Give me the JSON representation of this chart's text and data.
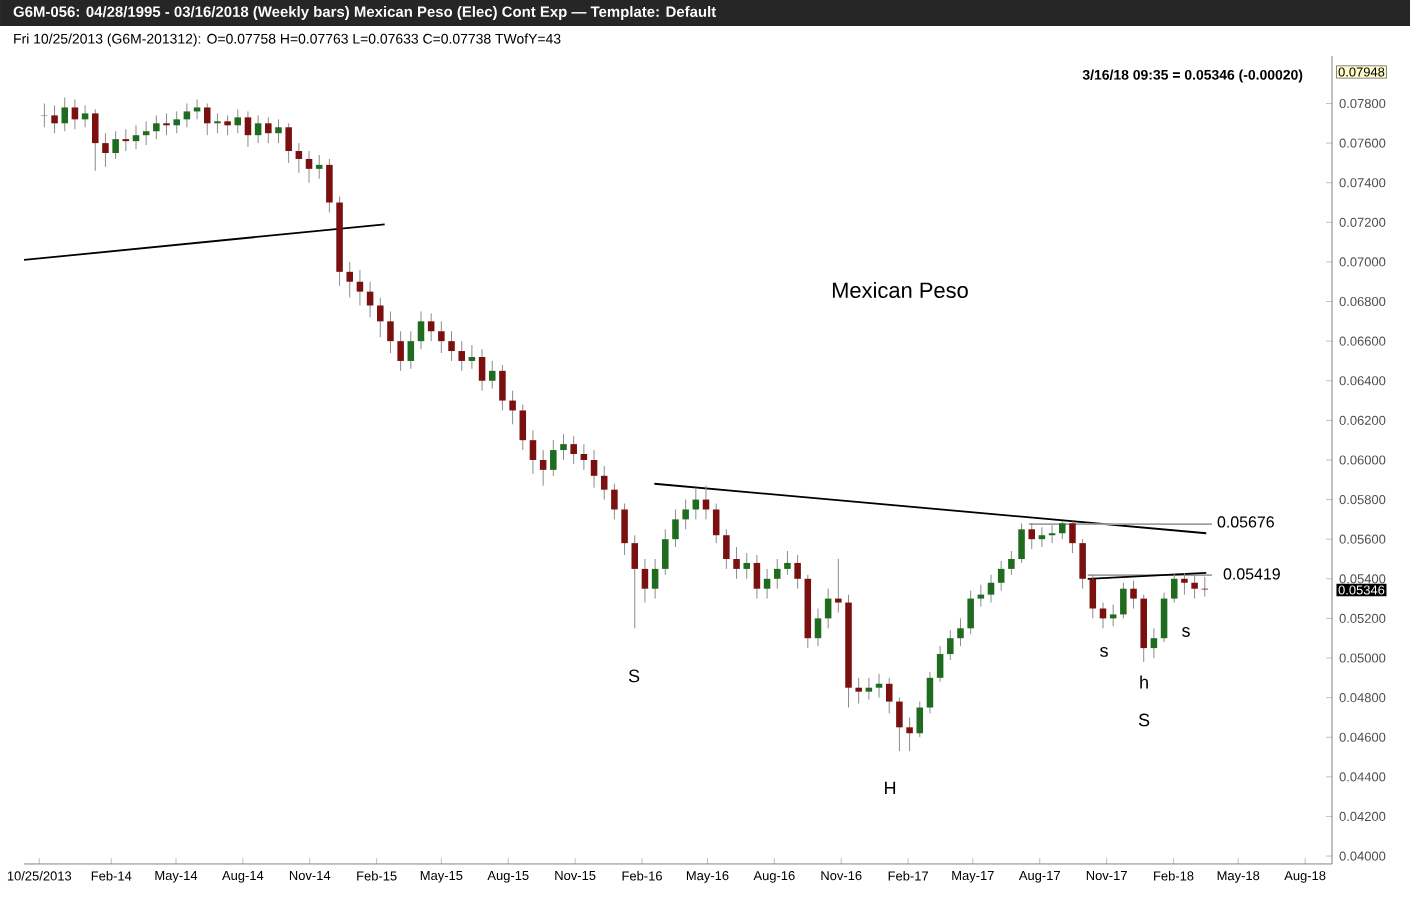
{
  "chart_data": {
    "type": "candlestick",
    "title": "G6M-056: 04/28/1995 - 03/16/2018 (Weekly bars) Mexican Peso (Elec) Cont Exp — Template: Default",
    "subtitle": "Fri 10/25/2013 (G6M-201312): O=0.07758 H=0.07763 L=0.07633 C=0.07738 TWofY=43",
    "x": [
      "2013-11-01",
      "2013-11-15",
      "2013-11-29",
      "2013-12-13",
      "2013-12-27",
      "2014-01-10",
      "2014-01-24",
      "2014-02-07",
      "2014-02-21",
      "2014-03-07",
      "2014-03-21",
      "2014-04-04",
      "2014-04-18",
      "2014-05-02",
      "2014-05-16",
      "2014-05-30",
      "2014-06-13",
      "2014-06-27",
      "2014-07-11",
      "2014-07-25",
      "2014-08-08",
      "2014-08-22",
      "2014-09-05",
      "2014-09-19",
      "2014-10-03",
      "2014-10-17",
      "2014-10-31",
      "2014-11-14",
      "2014-11-28",
      "2014-12-12",
      "2014-12-26",
      "2015-01-09",
      "2015-01-23",
      "2015-02-06",
      "2015-02-20",
      "2015-03-06",
      "2015-03-20",
      "2015-04-03",
      "2015-04-17",
      "2015-05-01",
      "2015-05-15",
      "2015-05-29",
      "2015-06-12",
      "2015-06-26",
      "2015-07-10",
      "2015-07-24",
      "2015-08-07",
      "2015-08-21",
      "2015-09-04",
      "2015-09-18",
      "2015-10-02",
      "2015-10-16",
      "2015-10-30",
      "2015-11-13",
      "2015-11-27",
      "2015-12-11",
      "2015-12-25",
      "2016-01-08",
      "2016-01-22",
      "2016-02-05",
      "2016-02-19",
      "2016-03-04",
      "2016-03-18",
      "2016-04-01",
      "2016-04-15",
      "2016-04-29",
      "2016-05-13",
      "2016-05-27",
      "2016-06-10",
      "2016-06-24",
      "2016-07-08",
      "2016-07-22",
      "2016-08-05",
      "2016-08-19",
      "2016-09-02",
      "2016-09-16",
      "2016-09-30",
      "2016-10-14",
      "2016-10-28",
      "2016-11-11",
      "2016-11-25",
      "2016-12-09",
      "2016-12-23",
      "2017-01-06",
      "2017-01-20",
      "2017-02-03",
      "2017-02-17",
      "2017-03-03",
      "2017-03-17",
      "2017-03-31",
      "2017-04-14",
      "2017-04-28",
      "2017-05-12",
      "2017-05-26",
      "2017-06-09",
      "2017-06-23",
      "2017-07-07",
      "2017-07-21",
      "2017-08-04",
      "2017-08-18",
      "2017-09-01",
      "2017-09-15",
      "2017-09-29",
      "2017-10-13",
      "2017-10-27",
      "2017-11-10",
      "2017-11-24",
      "2017-12-08",
      "2017-12-22",
      "2018-01-05",
      "2018-01-19",
      "2018-02-02",
      "2018-02-16",
      "2018-03-02",
      "2018-03-16"
    ],
    "ohlc": [
      [
        0.07738,
        0.078,
        0.0768,
        0.0774
      ],
      [
        0.0774,
        0.0779,
        0.0765,
        0.077
      ],
      [
        0.077,
        0.0783,
        0.0766,
        0.0778
      ],
      [
        0.0778,
        0.0782,
        0.0767,
        0.0772
      ],
      [
        0.0772,
        0.0779,
        0.0768,
        0.0775
      ],
      [
        0.0775,
        0.0777,
        0.0746,
        0.076
      ],
      [
        0.076,
        0.0765,
        0.0748,
        0.0755
      ],
      [
        0.0755,
        0.0766,
        0.0752,
        0.0762
      ],
      [
        0.0762,
        0.0767,
        0.0756,
        0.0761
      ],
      [
        0.0761,
        0.0769,
        0.0757,
        0.0764
      ],
      [
        0.0764,
        0.0771,
        0.0759,
        0.0766
      ],
      [
        0.0766,
        0.0774,
        0.0762,
        0.077
      ],
      [
        0.077,
        0.0775,
        0.0764,
        0.0769
      ],
      [
        0.0769,
        0.0776,
        0.0765,
        0.0772
      ],
      [
        0.0772,
        0.078,
        0.0768,
        0.0776
      ],
      [
        0.0776,
        0.0782,
        0.0772,
        0.0778
      ],
      [
        0.0778,
        0.078,
        0.0764,
        0.077
      ],
      [
        0.077,
        0.0775,
        0.0765,
        0.0771
      ],
      [
        0.0771,
        0.0774,
        0.0764,
        0.0769
      ],
      [
        0.0769,
        0.0777,
        0.0765,
        0.0773
      ],
      [
        0.0773,
        0.0776,
        0.0758,
        0.0764
      ],
      [
        0.0764,
        0.0774,
        0.076,
        0.077
      ],
      [
        0.077,
        0.0773,
        0.076,
        0.0765
      ],
      [
        0.0765,
        0.0772,
        0.076,
        0.0768
      ],
      [
        0.0768,
        0.077,
        0.075,
        0.0756
      ],
      [
        0.0756,
        0.076,
        0.0745,
        0.0752
      ],
      [
        0.0752,
        0.0756,
        0.074,
        0.0747
      ],
      [
        0.0747,
        0.0754,
        0.0742,
        0.0749
      ],
      [
        0.0749,
        0.0752,
        0.0725,
        0.073
      ],
      [
        0.073,
        0.0733,
        0.0688,
        0.0695
      ],
      [
        0.0695,
        0.07,
        0.0682,
        0.069
      ],
      [
        0.069,
        0.0696,
        0.0678,
        0.0685
      ],
      [
        0.0685,
        0.069,
        0.0672,
        0.0678
      ],
      [
        0.0678,
        0.0682,
        0.0662,
        0.067
      ],
      [
        0.067,
        0.0675,
        0.0654,
        0.066
      ],
      [
        0.066,
        0.0665,
        0.0645,
        0.065
      ],
      [
        0.065,
        0.0665,
        0.0646,
        0.066
      ],
      [
        0.066,
        0.0675,
        0.0656,
        0.067
      ],
      [
        0.067,
        0.0674,
        0.066,
        0.0665
      ],
      [
        0.0665,
        0.067,
        0.0654,
        0.066
      ],
      [
        0.066,
        0.0665,
        0.065,
        0.0655
      ],
      [
        0.0655,
        0.066,
        0.0645,
        0.065
      ],
      [
        0.065,
        0.0658,
        0.0646,
        0.0652
      ],
      [
        0.0652,
        0.0656,
        0.0635,
        0.064
      ],
      [
        0.064,
        0.065,
        0.0636,
        0.0645
      ],
      [
        0.0645,
        0.0648,
        0.0625,
        0.063
      ],
      [
        0.063,
        0.0635,
        0.0618,
        0.0625
      ],
      [
        0.0625,
        0.0628,
        0.0605,
        0.061
      ],
      [
        0.061,
        0.0615,
        0.0593,
        0.06
      ],
      [
        0.06,
        0.0605,
        0.0587,
        0.0595
      ],
      [
        0.0595,
        0.061,
        0.0592,
        0.0605
      ],
      [
        0.0605,
        0.0613,
        0.06,
        0.0608
      ],
      [
        0.0608,
        0.0612,
        0.0598,
        0.0603
      ],
      [
        0.0603,
        0.0608,
        0.0595,
        0.06
      ],
      [
        0.06,
        0.0605,
        0.0586,
        0.0592
      ],
      [
        0.0592,
        0.0597,
        0.058,
        0.0585
      ],
      [
        0.0585,
        0.0588,
        0.057,
        0.0575
      ],
      [
        0.0575,
        0.0578,
        0.0552,
        0.0558
      ],
      [
        0.0558,
        0.0562,
        0.0515,
        0.0545
      ],
      [
        0.0545,
        0.055,
        0.0528,
        0.0535
      ],
      [
        0.0535,
        0.055,
        0.053,
        0.0545
      ],
      [
        0.0545,
        0.0565,
        0.0542,
        0.056
      ],
      [
        0.056,
        0.0575,
        0.0556,
        0.057
      ],
      [
        0.057,
        0.058,
        0.0565,
        0.0575
      ],
      [
        0.0575,
        0.0586,
        0.057,
        0.058
      ],
      [
        0.058,
        0.0587,
        0.057,
        0.0575
      ],
      [
        0.0575,
        0.0578,
        0.0558,
        0.0562
      ],
      [
        0.0562,
        0.0565,
        0.0545,
        0.055
      ],
      [
        0.055,
        0.0556,
        0.054,
        0.0545
      ],
      [
        0.0545,
        0.0553,
        0.054,
        0.0548
      ],
      [
        0.0548,
        0.0552,
        0.053,
        0.0535
      ],
      [
        0.0535,
        0.0545,
        0.053,
        0.054
      ],
      [
        0.054,
        0.055,
        0.0535,
        0.0545
      ],
      [
        0.0545,
        0.0554,
        0.0542,
        0.0548
      ],
      [
        0.0548,
        0.0552,
        0.0535,
        0.054
      ],
      [
        0.054,
        0.0542,
        0.0505,
        0.051
      ],
      [
        0.051,
        0.0525,
        0.0506,
        0.052
      ],
      [
        0.052,
        0.0535,
        0.0515,
        0.053
      ],
      [
        0.053,
        0.055,
        0.0523,
        0.0528
      ],
      [
        0.0528,
        0.0532,
        0.0475,
        0.0485
      ],
      [
        0.0485,
        0.049,
        0.0477,
        0.0483
      ],
      [
        0.0483,
        0.049,
        0.0479,
        0.0485
      ],
      [
        0.0485,
        0.0492,
        0.048,
        0.0487
      ],
      [
        0.0487,
        0.049,
        0.0472,
        0.0478
      ],
      [
        0.0478,
        0.048,
        0.0453,
        0.0465
      ],
      [
        0.0465,
        0.047,
        0.0453,
        0.0462
      ],
      [
        0.0462,
        0.0478,
        0.046,
        0.0475
      ],
      [
        0.0475,
        0.0493,
        0.0472,
        0.049
      ],
      [
        0.049,
        0.0506,
        0.0488,
        0.0502
      ],
      [
        0.0502,
        0.0514,
        0.0499,
        0.051
      ],
      [
        0.051,
        0.052,
        0.0506,
        0.0515
      ],
      [
        0.0515,
        0.0534,
        0.0512,
        0.053
      ],
      [
        0.053,
        0.0537,
        0.0526,
        0.0532
      ],
      [
        0.0532,
        0.0542,
        0.0528,
        0.0538
      ],
      [
        0.0538,
        0.0549,
        0.0534,
        0.0545
      ],
      [
        0.0545,
        0.0554,
        0.0542,
        0.055
      ],
      [
        0.055,
        0.0568,
        0.0548,
        0.0565
      ],
      [
        0.0565,
        0.0568,
        0.0555,
        0.056
      ],
      [
        0.056,
        0.0566,
        0.0556,
        0.0562
      ],
      [
        0.0562,
        0.0567,
        0.0558,
        0.0563
      ],
      [
        0.0563,
        0.0569,
        0.056,
        0.0568
      ],
      [
        0.0568,
        0.0569,
        0.0553,
        0.0558
      ],
      [
        0.0558,
        0.056,
        0.0535,
        0.054
      ],
      [
        0.054,
        0.0542,
        0.052,
        0.0525
      ],
      [
        0.0525,
        0.0528,
        0.0515,
        0.052
      ],
      [
        0.052,
        0.0527,
        0.0516,
        0.0522
      ],
      [
        0.0522,
        0.0538,
        0.052,
        0.0535
      ],
      [
        0.0535,
        0.0539,
        0.0525,
        0.053
      ],
      [
        0.053,
        0.0532,
        0.0498,
        0.0505
      ],
      [
        0.0505,
        0.0515,
        0.05,
        0.051
      ],
      [
        0.051,
        0.0533,
        0.0508,
        0.053
      ],
      [
        0.053,
        0.0543,
        0.0528,
        0.054
      ],
      [
        0.054,
        0.0543,
        0.0532,
        0.0538
      ],
      [
        0.0538,
        0.0542,
        0.053,
        0.0535
      ],
      [
        0.0535,
        0.0541,
        0.0531,
        0.05346
      ]
    ],
    "series": [
      {
        "type": "line",
        "color": "#000000",
        "x": [
          "2013-10-04",
          "2015-02-12"
        ],
        "values": [
          0.0701,
          0.0719
        ]
      },
      {
        "type": "line",
        "color": "#000000",
        "x": [
          "2016-02-18",
          "2018-03-18"
        ],
        "values": [
          0.0588,
          0.0563
        ]
      },
      {
        "type": "line",
        "color": "#a0a0a0",
        "x": [
          "2017-07-17",
          "2018-03-26"
        ],
        "values": [
          0.05676,
          0.05676
        ]
      },
      {
        "type": "line",
        "color": "#a0a0a0",
        "x": [
          "2017-10-06",
          "2018-03-26"
        ],
        "values": [
          0.05419,
          0.05419
        ]
      },
      {
        "type": "line",
        "color": "#000000",
        "x": [
          "2017-10-06",
          "2018-03-18"
        ],
        "values": [
          0.054,
          0.0543
        ]
      }
    ],
    "annotations": [
      "Mexican Peso",
      "3/16/18 09:35 = 0.05346 (-0.00020)",
      "S",
      "H",
      "s",
      "h",
      "S",
      "s",
      "0.05676",
      "0.05419",
      "0.07948",
      "0.05346"
    ],
    "xlim": [
      "2013-10-04",
      "2018-09-07"
    ],
    "xticks": [
      {
        "value": "2013-10-25",
        "label": "10/25/2013"
      },
      {
        "value": "2014-02-01",
        "label": "Feb-14"
      },
      {
        "value": "2014-05-01",
        "label": "May-14"
      },
      {
        "value": "2014-08-01",
        "label": "Aug-14"
      },
      {
        "value": "2014-11-01",
        "label": "Nov-14"
      },
      {
        "value": "2015-02-01",
        "label": "Feb-15"
      },
      {
        "value": "2015-05-01",
        "label": "May-15"
      },
      {
        "value": "2015-08-01",
        "label": "Aug-15"
      },
      {
        "value": "2015-11-01",
        "label": "Nov-15"
      },
      {
        "value": "2016-02-01",
        "label": "Feb-16"
      },
      {
        "value": "2016-05-01",
        "label": "May-16"
      },
      {
        "value": "2016-08-01",
        "label": "Aug-16"
      },
      {
        "value": "2016-11-01",
        "label": "Nov-16"
      },
      {
        "value": "2017-02-01",
        "label": "Feb-17"
      },
      {
        "value": "2017-05-01",
        "label": "May-17"
      },
      {
        "value": "2017-08-01",
        "label": "Aug-17"
      },
      {
        "value": "2017-11-01",
        "label": "Nov-17"
      },
      {
        "value": "2018-02-01",
        "label": "Feb-18"
      },
      {
        "value": "2018-05-01",
        "label": "May-18"
      },
      {
        "value": "2018-08-01",
        "label": "Aug-18"
      }
    ],
    "ylim": [
      0.0396,
      0.0804
    ],
    "yticks": [
      {
        "value": 0.04,
        "label": "0.04000"
      },
      {
        "value": 0.042,
        "label": "0.04200"
      },
      {
        "value": 0.044,
        "label": "0.04400"
      },
      {
        "value": 0.046,
        "label": "0.04600"
      },
      {
        "value": 0.048,
        "label": "0.04800"
      },
      {
        "value": 0.05,
        "label": "0.05000"
      },
      {
        "value": 0.052,
        "label": "0.05200"
      },
      {
        "value": 0.054,
        "label": "0.05400"
      },
      {
        "value": 0.056,
        "label": "0.05600"
      },
      {
        "value": 0.058,
        "label": "0.05800"
      },
      {
        "value": 0.06,
        "label": "0.06000"
      },
      {
        "value": 0.062,
        "label": "0.06200"
      },
      {
        "value": 0.064,
        "label": "0.06400"
      },
      {
        "value": 0.066,
        "label": "0.06600"
      },
      {
        "value": 0.068,
        "label": "0.06800"
      },
      {
        "value": 0.07,
        "label": "0.07000"
      },
      {
        "value": 0.072,
        "label": "0.07200"
      },
      {
        "value": 0.074,
        "label": "0.07400"
      },
      {
        "value": 0.076,
        "label": "0.07600"
      },
      {
        "value": 0.078,
        "label": "0.07800"
      }
    ]
  }
}
